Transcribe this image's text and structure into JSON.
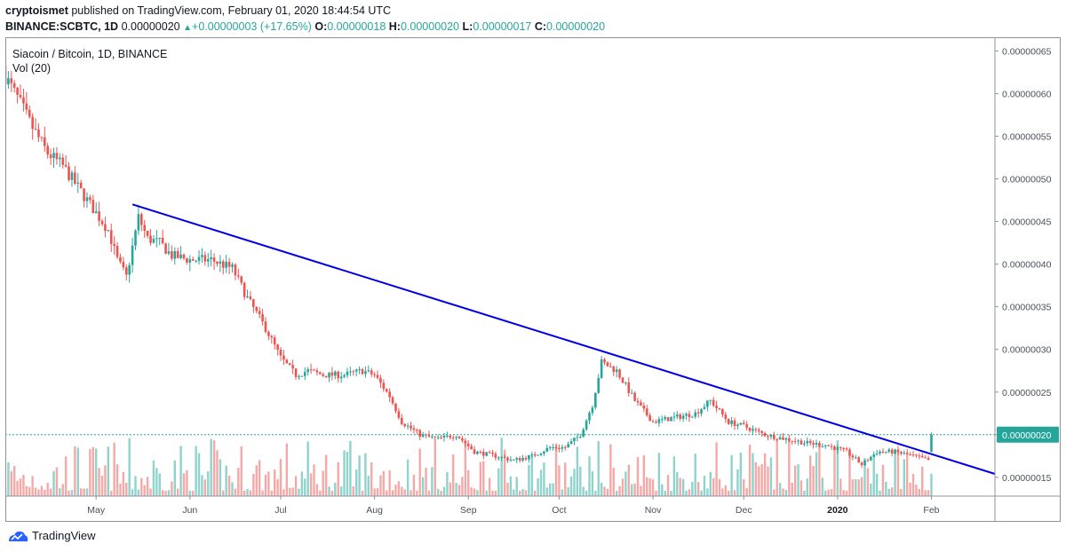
{
  "header": {
    "author": "cryptoismet",
    "published_text": "published on TradingView.com, February 01, 2020 18:44:54 UTC",
    "symbol": "BINANCE:SCBTC, 1D",
    "last_price": "0.00000020",
    "change": "+0.00000003 (+17.65%)",
    "o_label": "O:",
    "o_value": "0.00000018",
    "h_label": "H:",
    "h_value": "0.00000020",
    "l_label": "L:",
    "l_value": "0.00000017",
    "c_label": "C:",
    "c_value": "0.00000020"
  },
  "legend": {
    "title": "Siacoin / Bitcoin, 1D, BINANCE",
    "volume": "Vol (20)"
  },
  "footer": {
    "brand": "TradingView"
  },
  "colors": {
    "up": "#26a69a",
    "down": "#ef5350",
    "up_volume": "#8fd3cc",
    "down_volume": "#f5a9a7",
    "trendline": "#0000e6",
    "price_badge": "#26a69a"
  },
  "chart_data": {
    "type": "candlestick",
    "title": "Siacoin / Bitcoin, 1D, BINANCE",
    "y_axis": {
      "position": "right",
      "ticks": [
        "0.00000065",
        "0.00000060",
        "0.00000055",
        "0.00000050",
        "0.00000045",
        "0.00000040",
        "0.00000035",
        "0.00000030",
        "0.00000025",
        "0.00000020",
        "0.00000015"
      ],
      "range": [
        1.28e-07,
        6.66e-07
      ]
    },
    "x_axis": {
      "ticks": [
        "May",
        "Jun",
        "Jul",
        "Aug",
        "Sep",
        "Oct",
        "Nov",
        "Dec",
        "2020",
        "Feb"
      ],
      "bold_ticks": [
        "2020"
      ],
      "range_dates": [
        "2019-04-01",
        "2020-02-22"
      ]
    },
    "last_price_marker": {
      "value": 2e-07,
      "label": "0.00000020"
    },
    "close_path": [
      [
        "2019-04-01",
        6.2e-07
      ],
      [
        "2019-04-05",
        5.95e-07
      ],
      [
        "2019-04-10",
        5.6e-07
      ],
      [
        "2019-04-15",
        5.3e-07
      ],
      [
        "2019-04-20",
        5.15e-07
      ],
      [
        "2019-04-25",
        4.9e-07
      ],
      [
        "2019-04-30",
        4.65e-07
      ],
      [
        "2019-05-05",
        4.4e-07
      ],
      [
        "2019-05-08",
        4.05e-07
      ],
      [
        "2019-05-11",
        3.85e-07
      ],
      [
        "2019-05-15",
        4.55e-07
      ],
      [
        "2019-05-18",
        4.3e-07
      ],
      [
        "2019-05-22",
        4.25e-07
      ],
      [
        "2019-05-26",
        4.1e-07
      ],
      [
        "2019-06-01",
        4.05e-07
      ],
      [
        "2019-06-08",
        4.05e-07
      ],
      [
        "2019-06-15",
        3.95e-07
      ],
      [
        "2019-06-20",
        3.6e-07
      ],
      [
        "2019-06-26",
        3.25e-07
      ],
      [
        "2019-07-01",
        2.9e-07
      ],
      [
        "2019-07-06",
        2.7e-07
      ],
      [
        "2019-07-10",
        2.75e-07
      ],
      [
        "2019-07-15",
        2.7e-07
      ],
      [
        "2019-07-22",
        2.7e-07
      ],
      [
        "2019-07-28",
        2.75e-07
      ],
      [
        "2019-08-01",
        2.7e-07
      ],
      [
        "2019-08-06",
        2.45e-07
      ],
      [
        "2019-08-10",
        2.15e-07
      ],
      [
        "2019-08-16",
        2e-07
      ],
      [
        "2019-08-22",
        1.95e-07
      ],
      [
        "2019-08-28",
        2e-07
      ],
      [
        "2019-09-03",
        1.8e-07
      ],
      [
        "2019-09-10",
        1.75e-07
      ],
      [
        "2019-09-16",
        1.7e-07
      ],
      [
        "2019-09-22",
        1.75e-07
      ],
      [
        "2019-09-28",
        1.85e-07
      ],
      [
        "2019-10-03",
        1.85e-07
      ],
      [
        "2019-10-08",
        2e-07
      ],
      [
        "2019-10-12",
        2.35e-07
      ],
      [
        "2019-10-15",
        2.85e-07
      ],
      [
        "2019-10-20",
        2.75e-07
      ],
      [
        "2019-10-26",
        2.4e-07
      ],
      [
        "2019-11-01",
        2.15e-07
      ],
      [
        "2019-11-08",
        2.2e-07
      ],
      [
        "2019-11-15",
        2.25e-07
      ],
      [
        "2019-11-20",
        2.4e-07
      ],
      [
        "2019-11-26",
        2.15e-07
      ],
      [
        "2019-12-01",
        2.1e-07
      ],
      [
        "2019-12-08",
        2e-07
      ],
      [
        "2019-12-15",
        1.95e-07
      ],
      [
        "2019-12-22",
        1.9e-07
      ],
      [
        "2019-12-28",
        1.88e-07
      ],
      [
        "2020-01-04",
        1.8e-07
      ],
      [
        "2020-01-09",
        1.65e-07
      ],
      [
        "2020-01-14",
        1.8e-07
      ],
      [
        "2020-01-20",
        1.8e-07
      ],
      [
        "2020-01-26",
        1.75e-07
      ],
      [
        "2020-01-31",
        1.7e-07
      ],
      [
        "2020-02-01",
        2e-07
      ]
    ],
    "trendline": {
      "start": [
        "2019-05-13",
        4.7e-07
      ],
      "end": [
        "2020-02-22",
        1.54e-07
      ]
    }
  }
}
